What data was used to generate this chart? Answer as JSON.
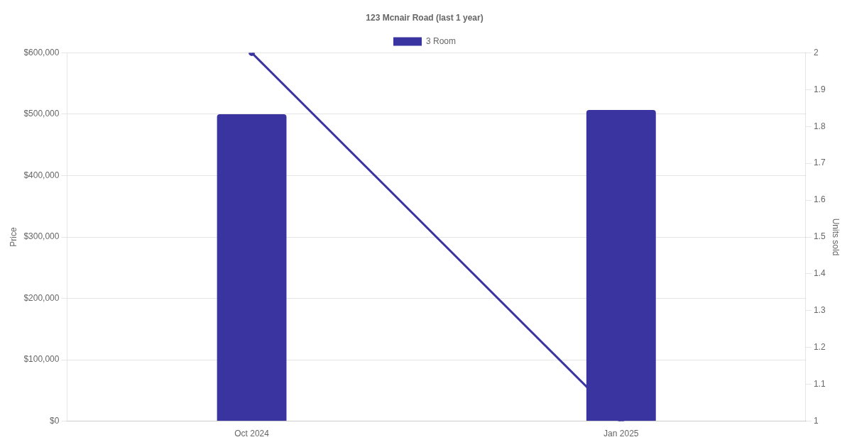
{
  "chart_data": {
    "type": "bar",
    "title": "123 Mcnair Road (last 1 year)",
    "categories": [
      "Oct 2024",
      "Jan 2025"
    ],
    "ylabel": "Price",
    "y2label": "Units sold",
    "series": [
      {
        "name": "3 Room",
        "color": "#3934a0",
        "values": [
          500000,
          507000
        ]
      },
      {
        "type": "line",
        "axis": "y2",
        "color": "#3934a0",
        "values": [
          2,
          1
        ]
      }
    ],
    "ylim": [
      0,
      600000
    ],
    "yticks": [
      {
        "value": 0,
        "label": "$0"
      },
      {
        "value": 100000,
        "label": "$100,000"
      },
      {
        "value": 200000,
        "label": "$200,000"
      },
      {
        "value": 300000,
        "label": "$300,000"
      },
      {
        "value": 400000,
        "label": "$400,000"
      },
      {
        "value": 500000,
        "label": "$500,000"
      },
      {
        "value": 600000,
        "label": "$600,000"
      }
    ],
    "y2lim": [
      1,
      2
    ],
    "y2ticks": [
      1,
      1.1,
      1.2,
      1.3,
      1.4,
      1.5,
      1.6,
      1.7,
      1.8,
      1.9,
      2
    ],
    "grid": "y",
    "legend": "top",
    "marker": "circle"
  }
}
